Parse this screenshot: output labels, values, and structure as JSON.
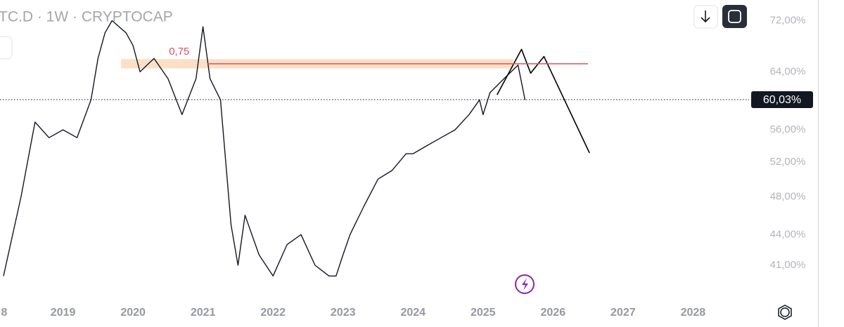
{
  "chart_data": {
    "type": "line",
    "title": "TC.D · 1W · CRYPTOCAP",
    "log_scale": true,
    "xlim": [
      2018.1,
      2028.8
    ],
    "ylim": [
      37.7,
      75.5
    ],
    "xticks": [
      {
        "value": 2018,
        "label": "8"
      },
      2019,
      2020,
      2021,
      2022,
      2023,
      2024,
      2025,
      2026,
      2027,
      2028
    ],
    "yticks": [
      {
        "value": 41,
        "label": "41,00%"
      },
      {
        "value": 44,
        "label": "44,00%"
      },
      {
        "value": 48,
        "label": "48,00%"
      },
      {
        "value": 52,
        "label": "52,00%"
      },
      {
        "value": 56,
        "label": "56,00%"
      },
      {
        "value": 64,
        "label": "64,00%"
      },
      {
        "value": 72,
        "label": "72,00%"
      }
    ],
    "series": [
      {
        "color": "#131722",
        "x": [
          2018.15,
          2018.4,
          2018.6,
          2018.8,
          2019.0,
          2019.2,
          2019.4,
          2019.5,
          2019.6,
          2019.7,
          2019.9,
          2020.0,
          2020.1,
          2020.3,
          2020.5,
          2020.7,
          2020.9,
          2021.0,
          2021.1,
          2021.25,
          2021.4,
          2021.5,
          2021.6,
          2021.8,
          2022.0,
          2022.2,
          2022.4,
          2022.6,
          2022.8,
          2022.9,
          2023.0,
          2023.1,
          2023.3,
          2023.5,
          2023.7,
          2023.9,
          2024.0,
          2024.2,
          2024.4,
          2024.6,
          2024.8,
          2024.95,
          2025.0,
          2025.1,
          2025.3,
          2025.5,
          2025.6
        ],
        "values": [
          40,
          48,
          57,
          55,
          56,
          55,
          60,
          66,
          70,
          72,
          70,
          68,
          64,
          66,
          63,
          58,
          63,
          71,
          63,
          60,
          45,
          41,
          46,
          42,
          40,
          43,
          44,
          41,
          40,
          40,
          42,
          44,
          47,
          50,
          51,
          53,
          53,
          54,
          55,
          56,
          58,
          60,
          58,
          61,
          63,
          65,
          60
        ]
      },
      {
        "color": "#000000",
        "x": [
          2025.2,
          2025.55,
          2025.68,
          2025.87,
          2026.52
        ],
        "values": [
          60.7,
          67.4,
          63.8,
          66.3,
          53.1
        ]
      }
    ],
    "fib": {
      "label": "0,75",
      "value": 65.2,
      "x": [
        2021.06,
        2026.5
      ],
      "color": "#e0505a"
    },
    "zone": {
      "y": [
        64.5,
        65.9
      ],
      "x": [
        2019.83,
        2025.43
      ],
      "color": "#fbd9bd"
    },
    "current": {
      "value": 60.03,
      "label": "60,03%"
    }
  }
}
